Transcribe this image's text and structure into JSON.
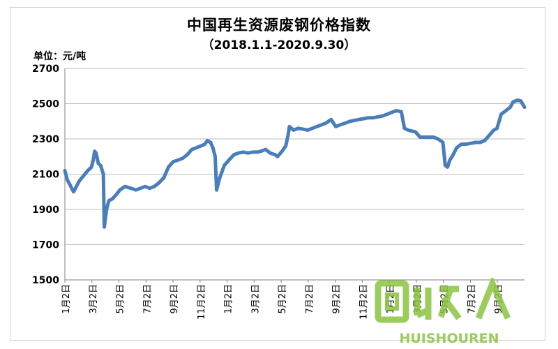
{
  "chart_data": {
    "type": "line",
    "title": "中国再生资源废钢价格指数",
    "subtitle": "（2018.1.1-2020.9.30）",
    "unit_label": "单位：元/吨",
    "ylim": [
      1500,
      2700
    ],
    "yticks": [
      1500,
      1700,
      1900,
      2100,
      2300,
      2500,
      2700
    ],
    "x_tick_labels": [
      "1月2日",
      "3月2日",
      "5月2日",
      "7月2日",
      "9月2日",
      "11月2日",
      "1月2日",
      "3月2日",
      "5月2日",
      "7月2日",
      "9月2日",
      "11月2日",
      "1月2日",
      "3月2日",
      "5月2日",
      "7月2日",
      "9月2日"
    ],
    "grid": "horizontal",
    "line_color": "#4a7ebb",
    "series": [
      {
        "x": [
          "2018-01-01",
          "2018-01-06",
          "2018-01-12",
          "2018-01-20",
          "2018-02-01",
          "2018-02-20",
          "2018-02-28",
          "2018-03-04",
          "2018-03-07",
          "2018-03-10",
          "2018-03-15",
          "2018-03-20",
          "2018-03-26",
          "2018-03-28",
          "2018-04-02",
          "2018-04-07",
          "2018-04-15",
          "2018-04-25",
          "2018-05-01",
          "2018-05-12",
          "2018-05-25",
          "2018-06-05",
          "2018-06-15",
          "2018-06-25",
          "2018-07-05",
          "2018-07-15",
          "2018-07-25",
          "2018-08-05",
          "2018-08-15",
          "2018-08-25",
          "2018-09-05",
          "2018-09-15",
          "2018-09-25",
          "2018-10-05",
          "2018-10-15",
          "2018-10-25",
          "2018-11-02",
          "2018-11-08",
          "2018-11-15",
          "2018-11-20",
          "2018-11-25",
          "2018-11-28",
          "2018-12-05",
          "2018-12-15",
          "2018-12-25",
          "2019-01-05",
          "2019-01-15",
          "2019-01-25",
          "2019-02-05",
          "2019-02-15",
          "2019-02-25",
          "2019-03-05",
          "2019-03-15",
          "2019-03-25",
          "2019-04-05",
          "2019-04-10",
          "2019-04-20",
          "2019-04-28",
          "2019-05-03",
          "2019-05-06",
          "2019-05-15",
          "2019-05-25",
          "2019-06-05",
          "2019-06-15",
          "2019-06-25",
          "2019-07-05",
          "2019-07-15",
          "2019-07-25",
          "2019-08-05",
          "2019-08-15",
          "2019-08-25",
          "2019-09-05",
          "2019-09-15",
          "2019-09-25",
          "2019-10-05",
          "2019-10-15",
          "2019-10-25",
          "2019-11-05",
          "2019-11-15",
          "2019-11-25",
          "2019-12-05",
          "2019-12-15",
          "2019-12-25",
          "2020-01-05",
          "2020-01-12",
          "2020-01-20",
          "2020-02-05",
          "2020-02-15",
          "2020-02-25",
          "2020-03-05",
          "2020-03-15",
          "2020-03-25",
          "2020-04-05",
          "2020-04-10",
          "2020-04-15",
          "2020-04-20",
          "2020-04-25",
          "2020-05-05",
          "2020-05-15",
          "2020-05-25",
          "2020-06-05",
          "2020-06-15",
          "2020-06-25",
          "2020-07-05",
          "2020-07-15",
          "2020-07-25",
          "2020-08-01",
          "2020-08-10",
          "2020-08-20",
          "2020-08-30",
          "2020-09-05",
          "2020-09-15",
          "2020-09-22",
          "2020-09-30"
        ],
        "y": [
          2120,
          2070,
          2040,
          2000,
          2060,
          2120,
          2140,
          2180,
          2230,
          2220,
          2160,
          2150,
          2100,
          1800,
          1900,
          1950,
          1960,
          1990,
          2010,
          2030,
          2020,
          2010,
          2020,
          2030,
          2020,
          2030,
          2050,
          2080,
          2140,
          2170,
          2180,
          2190,
          2210,
          2240,
          2250,
          2260,
          2270,
          2290,
          2280,
          2250,
          2200,
          2010,
          2080,
          2150,
          2180,
          2210,
          2220,
          2225,
          2220,
          2225,
          2225,
          2230,
          2240,
          2220,
          2210,
          2200,
          2230,
          2260,
          2320,
          2370,
          2350,
          2360,
          2355,
          2350,
          2360,
          2370,
          2380,
          2390,
          2410,
          2370,
          2380,
          2390,
          2400,
          2405,
          2410,
          2415,
          2420,
          2420,
          2425,
          2430,
          2440,
          2450,
          2460,
          2455,
          2360,
          2350,
          2340,
          2310,
          2310,
          2310,
          2310,
          2300,
          2280,
          2150,
          2140,
          2180,
          2200,
          2250,
          2270,
          2270,
          2275,
          2280,
          2280,
          2290,
          2320,
          2350,
          2360,
          2440,
          2460,
          2480,
          2510,
          2520,
          2515,
          2480
        ]
      }
    ]
  },
  "watermark": {
    "text_top": "回收人",
    "text_bottom": "HUISHOUREN",
    "color": "#8bc540"
  }
}
